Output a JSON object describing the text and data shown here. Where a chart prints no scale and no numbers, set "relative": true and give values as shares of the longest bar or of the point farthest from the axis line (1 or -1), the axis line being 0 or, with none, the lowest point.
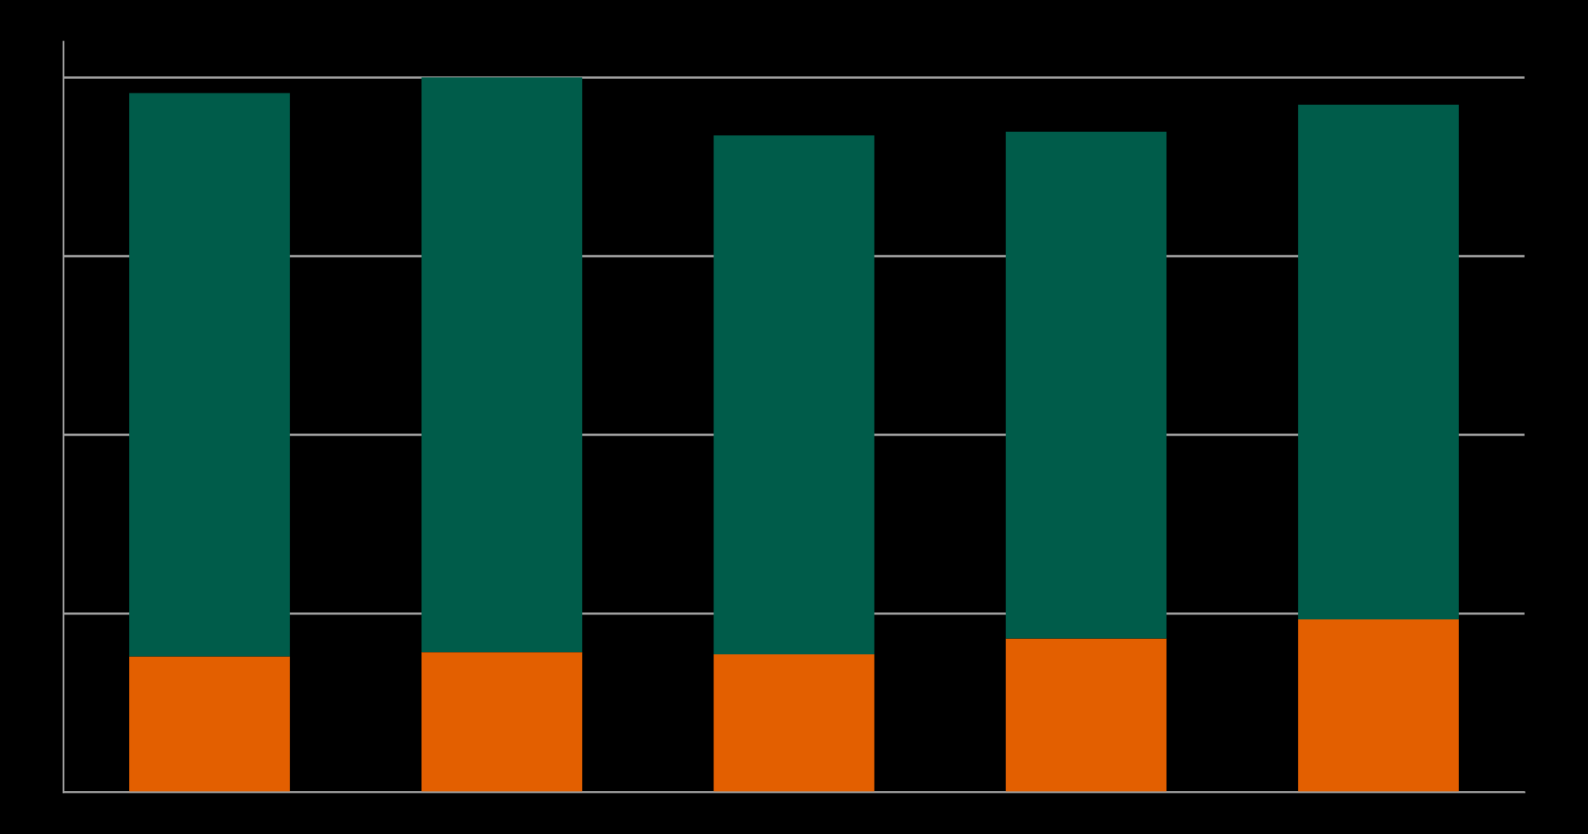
{
  "chart_data": {
    "type": "bar",
    "relative": true,
    "stacked": true,
    "grid": "y",
    "tick_labels": false,
    "categories": [
      null,
      null,
      null,
      null,
      null
    ],
    "series": [
      {
        "color": "#e35f00",
        "values": [
          0.19,
          0.196,
          0.193,
          0.215,
          0.242
        ]
      },
      {
        "color": "#005c4a",
        "values": [
          0.788,
          0.804,
          0.726,
          0.709,
          0.72
        ]
      }
    ]
  }
}
